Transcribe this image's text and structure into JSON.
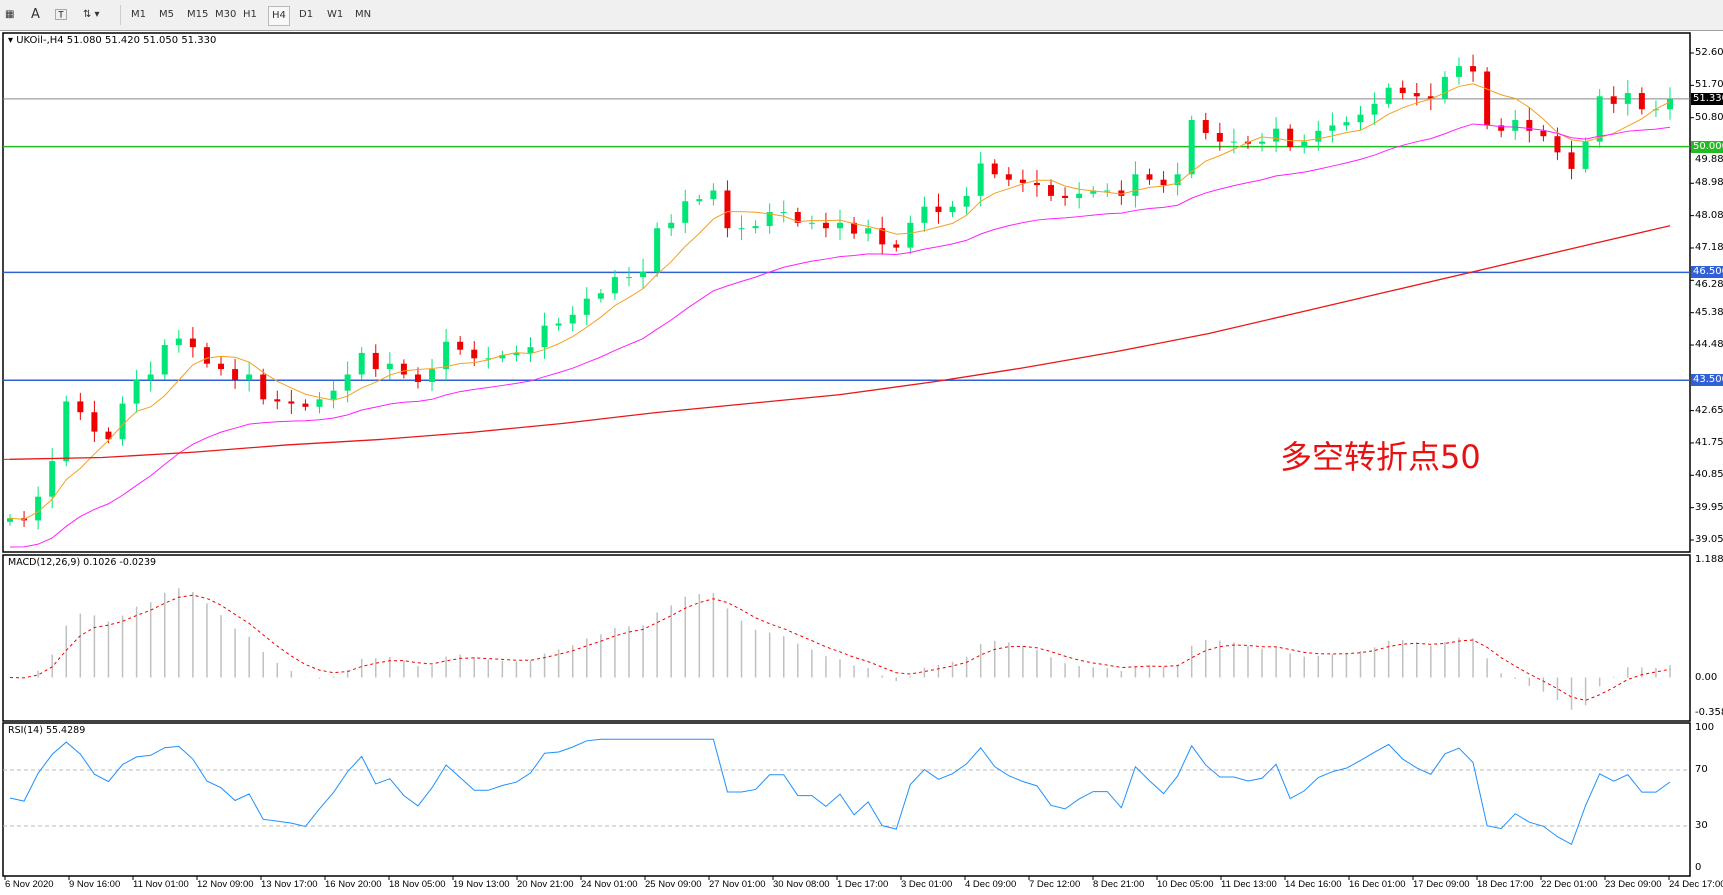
{
  "toolbar": {
    "icons": [
      "grid-icon",
      "text-a-icon",
      "text-label-icon",
      "arrows-icon"
    ],
    "periods": [
      "M1",
      "M5",
      "M15",
      "M30",
      "H1",
      "H4",
      "D1",
      "W1",
      "MN"
    ],
    "active": "H4"
  },
  "chart": {
    "symbol_line": "UKOil-,H4  51.080 51.420 51.050 51.330",
    "price_ticks": [
      "52.605",
      "51.705",
      "50.805",
      "49.880",
      "48.980",
      "48.080",
      "47.180",
      "46.280",
      "45.380",
      "44.480",
      "42.655",
      "41.755",
      "40.855",
      "39.955",
      "39.055"
    ],
    "price_range": [
      39.055,
      52.605
    ],
    "current_price": "51.330",
    "hlines": [
      {
        "value": 50.0,
        "label": "50.000",
        "color": "#22bb22"
      },
      {
        "value": 46.5,
        "label": "46.500",
        "color": "#3060d8"
      },
      {
        "value": 43.5,
        "label": "43.500",
        "color": "#3060d8"
      }
    ],
    "colors": {
      "bull": "#00e676",
      "bear": "#ee0000",
      "ma_fast": "#f5a020",
      "ma_mid": "#ff20ff",
      "ma_slow": "#e81818"
    },
    "annotation": "多空转折点50",
    "closes": [
      39.66,
      39.6,
      40.26,
      41.25,
      42.91,
      42.61,
      42.07,
      41.86,
      42.85,
      43.51,
      43.66,
      44.48,
      44.66,
      44.42,
      43.96,
      43.81,
      43.51,
      43.66,
      42.97,
      42.91,
      42.85,
      42.76,
      42.97,
      43.21,
      43.66,
      44.26,
      43.81,
      43.96,
      43.66,
      43.45,
      43.81,
      44.57,
      44.35,
      44.11,
      44.11,
      44.2,
      44.26,
      44.42,
      45.02,
      45.08,
      45.32,
      45.77,
      45.92,
      46.37,
      46.37,
      46.52,
      47.73,
      47.88,
      48.48,
      48.54,
      48.78,
      47.73,
      47.73,
      47.79,
      48.18,
      48.18,
      47.88,
      47.88,
      47.73,
      47.88,
      47.58,
      47.73,
      47.28,
      47.19,
      47.88,
      48.33,
      48.18,
      48.33,
      48.63,
      49.53,
      49.23,
      49.08,
      48.99,
      48.93,
      48.63,
      48.57,
      48.69,
      48.78,
      48.78,
      48.63,
      49.23,
      49.08,
      48.93,
      49.23,
      50.74,
      50.38,
      50.14,
      50.14,
      50.08,
      50.14,
      50.5,
      49.99,
      50.14,
      50.44,
      50.59,
      50.68,
      50.89,
      51.19,
      51.64,
      51.49,
      51.4,
      51.34,
      51.94,
      52.24,
      52.09,
      50.59,
      50.44,
      50.74,
      50.44,
      50.29,
      49.84,
      49.38,
      50.14,
      51.4,
      51.19,
      51.49,
      51.04,
      51.04,
      51.33
    ],
    "ma_slow": [
      41.3,
      41.35,
      41.5,
      41.7,
      41.85,
      42.05,
      42.3,
      42.6,
      42.85,
      43.1,
      43.45,
      43.85,
      44.3,
      44.8,
      45.4,
      46.0,
      46.6,
      47.2,
      47.8
    ]
  },
  "macd": {
    "label": "MACD(12,26,9) 0.1026 -0.0239",
    "ticks": [
      "1.188",
      "0.00",
      "-0.3582"
    ],
    "range": [
      -0.3582,
      1.188
    ]
  },
  "rsi": {
    "label": "RSI(14) 55.4289",
    "ticks": [
      "100",
      "70",
      "30",
      "0"
    ],
    "levels": [
      30,
      70
    ],
    "color": "#1e90ff"
  },
  "time_labels": [
    "6 Nov 2020",
    "9 Nov 16:00",
    "11 Nov 01:00",
    "12 Nov 09:00",
    "13 Nov 17:00",
    "16 Nov 20:00",
    "18 Nov 05:00",
    "19 Nov 13:00",
    "20 Nov 21:00",
    "24 Nov 01:00",
    "25 Nov 09:00",
    "27 Nov 01:00",
    "30 Nov 08:00",
    "1 Dec 17:00",
    "3 Dec 01:00",
    "4 Dec 09:00",
    "7 Dec 12:00",
    "8 Dec 21:00",
    "10 Dec 05:00",
    "11 Dec 13:00",
    "14 Dec 16:00",
    "16 Dec 01:00",
    "17 Dec 09:00",
    "18 Dec 17:00",
    "22 Dec 01:00",
    "23 Dec 09:00",
    "24 Dec 17:00"
  ]
}
